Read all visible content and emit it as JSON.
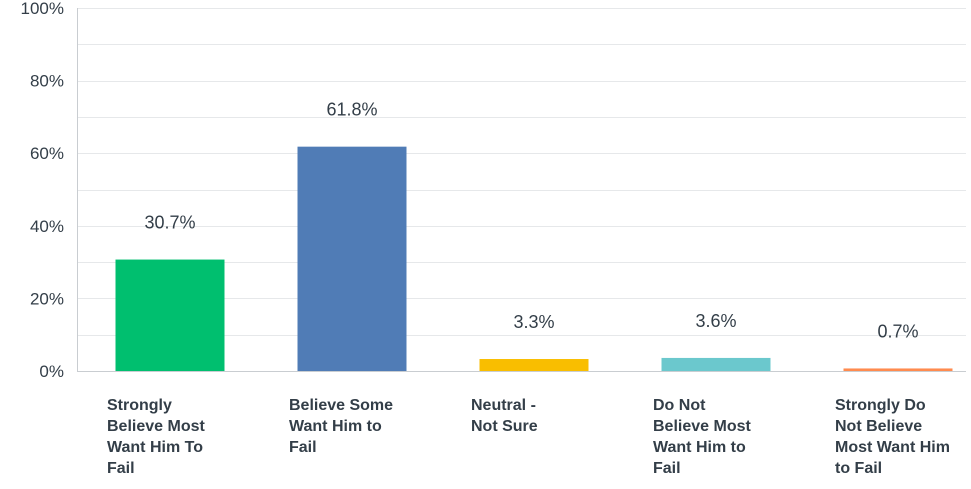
{
  "chart_data": {
    "type": "bar",
    "categories": [
      [
        "Strongly",
        "Believe Most",
        "Want Him To",
        "Fail"
      ],
      [
        "Believe Some",
        "Want Him to",
        "Fail"
      ],
      [
        "Neutral -",
        "Not Sure"
      ],
      [
        "Do Not",
        "Believe Most",
        "Want Him to",
        "Fail"
      ],
      [
        "Strongly Do",
        "Not Believe",
        "Most Want Him",
        "to Fail"
      ]
    ],
    "values": [
      30.7,
      61.8,
      3.3,
      3.6,
      0.7
    ],
    "data_labels": [
      "30.7%",
      "61.8%",
      "3.3%",
      "3.6%",
      "0.7%"
    ],
    "colors": [
      "#00bf6f",
      "#507cb6",
      "#f9be00",
      "#6bc8cd",
      "#ff8b4f"
    ],
    "ylim": [
      0,
      100
    ],
    "yticks": [
      0,
      20,
      40,
      60,
      80,
      100
    ],
    "ytick_labels": [
      "0%",
      "20%",
      "40%",
      "60%",
      "80%",
      "100%"
    ],
    "gridlines": [
      10,
      20,
      30,
      40,
      50,
      60,
      70,
      80,
      90,
      100
    ],
    "grid": true
  }
}
